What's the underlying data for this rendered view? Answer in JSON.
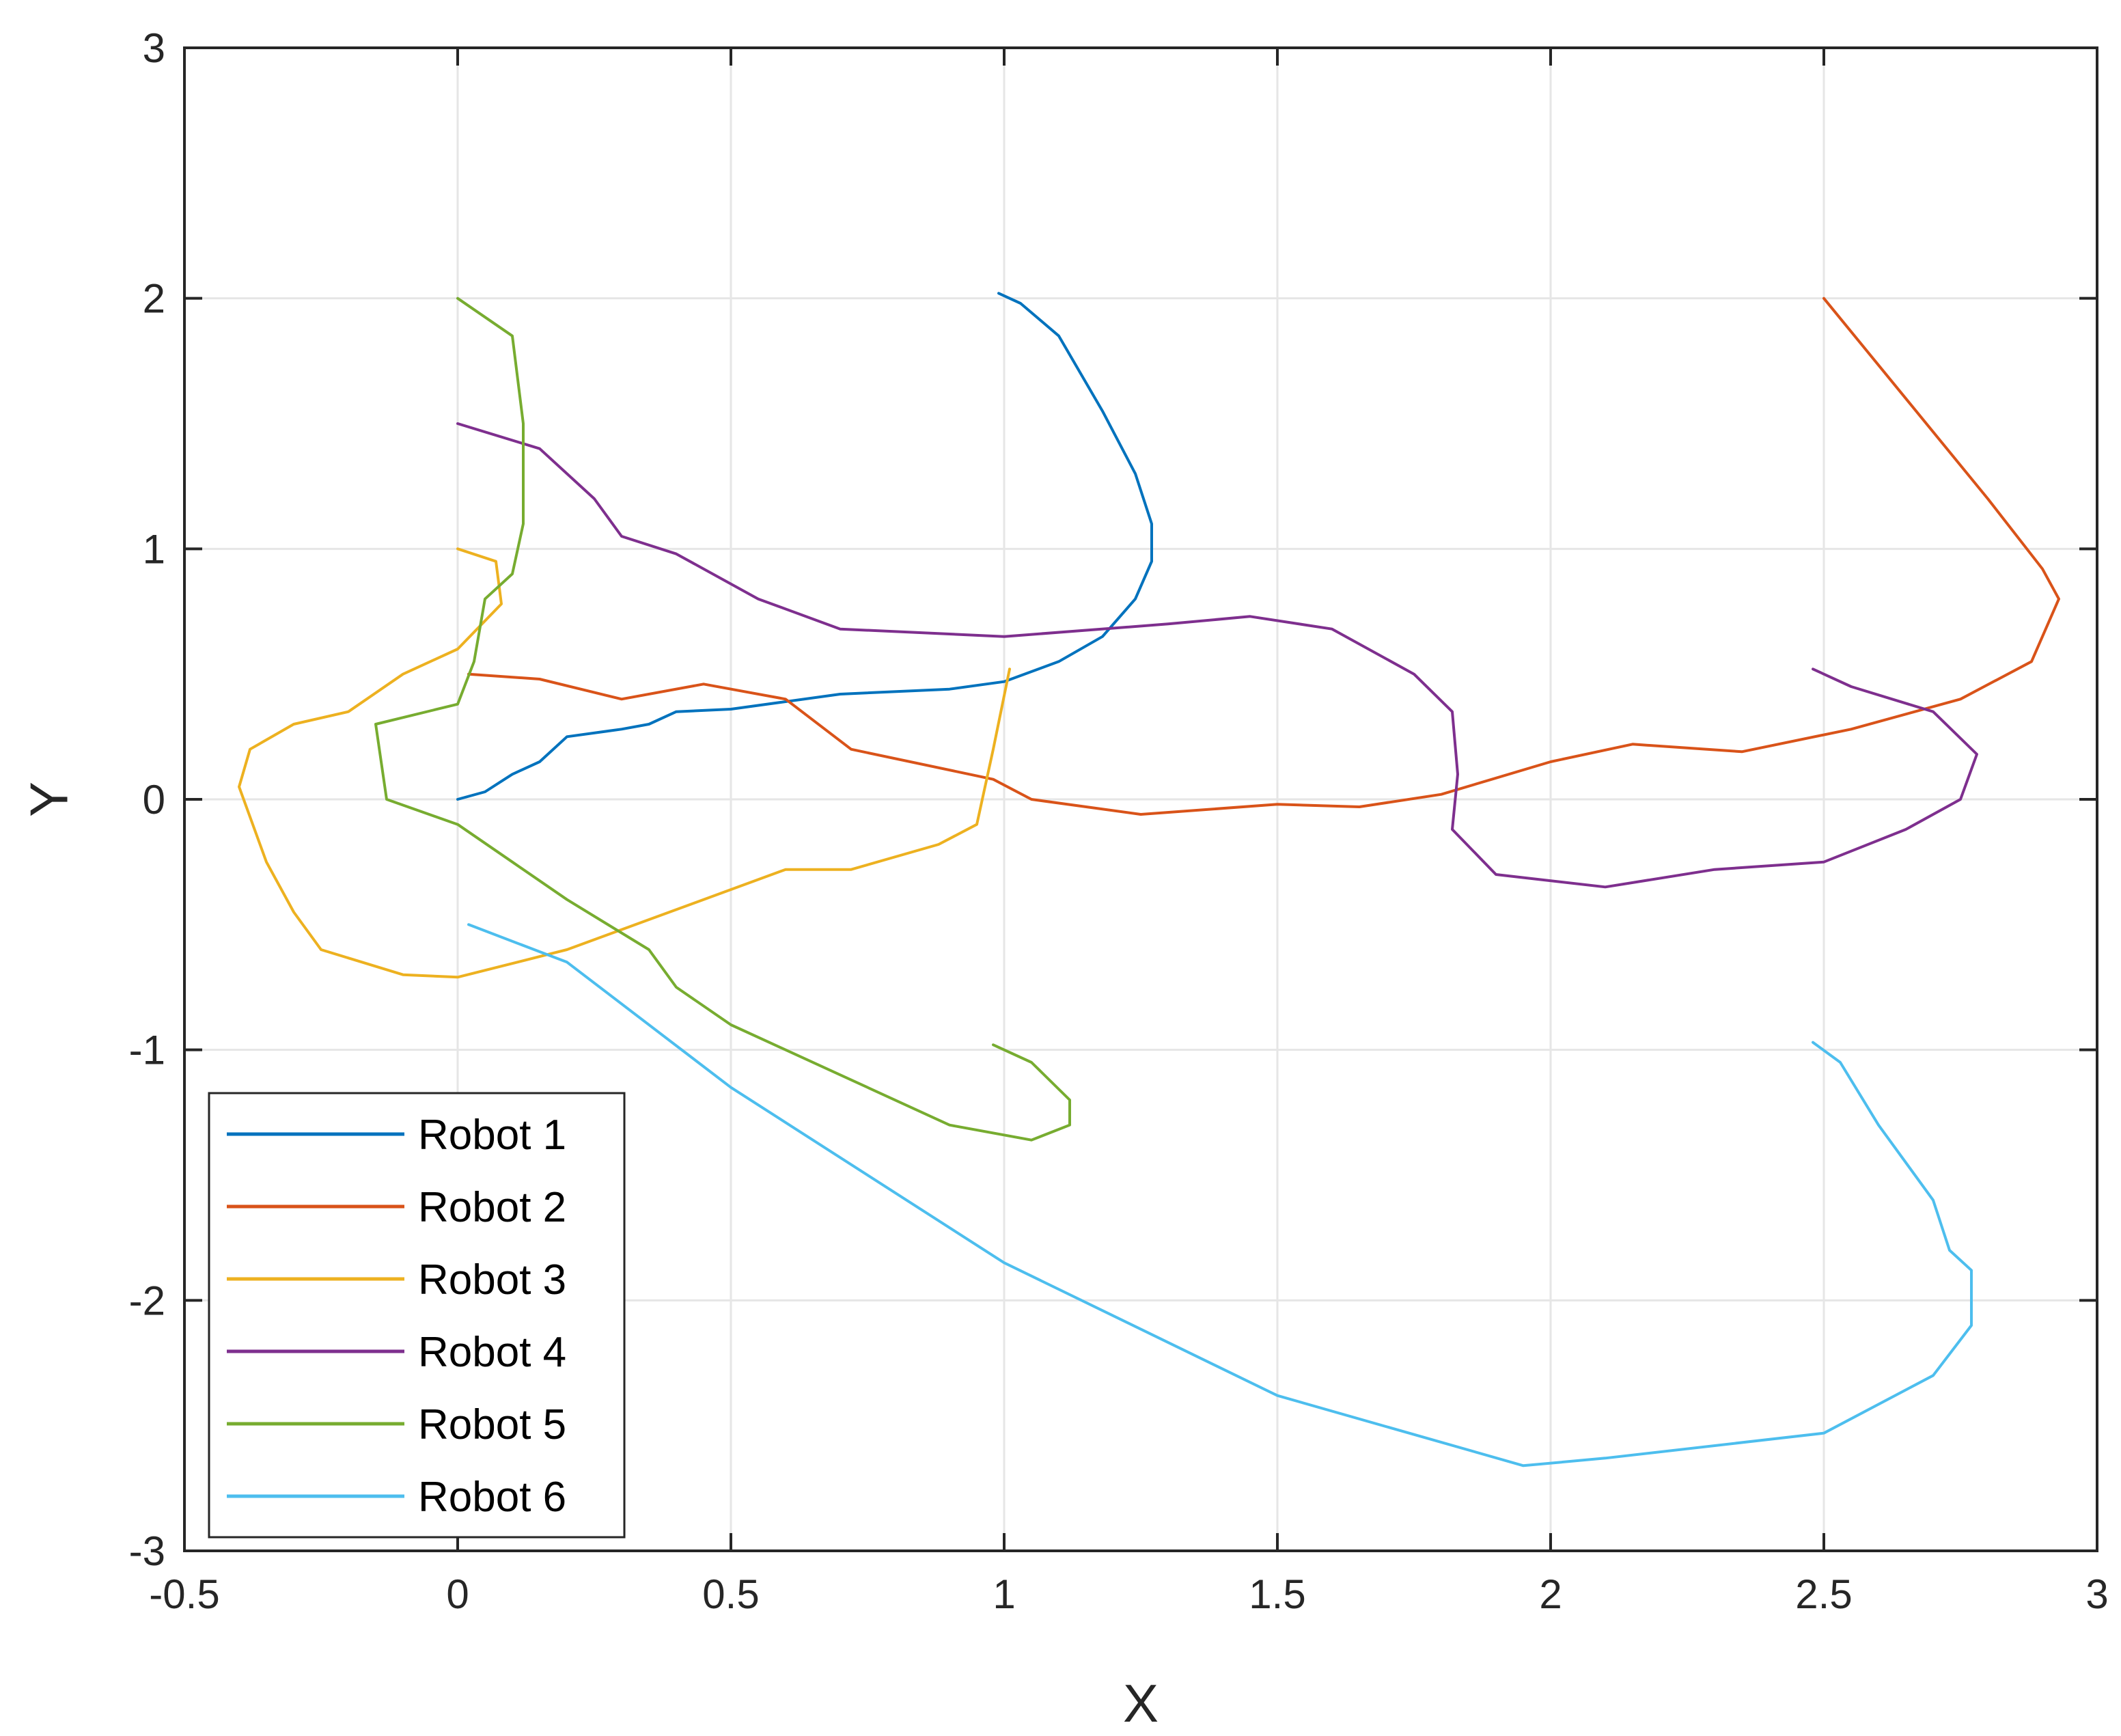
{
  "chart_data": {
    "type": "line",
    "title": "",
    "xlabel": "X",
    "ylabel": "Y",
    "xlim": [
      -0.5,
      3
    ],
    "ylim": [
      -3,
      3
    ],
    "xticks": [
      "-0.5",
      "0",
      "0.5",
      "1",
      "1.5",
      "2",
      "2.5",
      "3"
    ],
    "yticks": [
      "3",
      "2",
      "1",
      "0",
      "-1",
      "-2",
      "-3"
    ],
    "xtick_values": [
      -0.5,
      0,
      0.5,
      1,
      1.5,
      2,
      2.5,
      3
    ],
    "ytick_values": [
      3,
      2,
      1,
      0,
      -1,
      -2,
      -3
    ],
    "grid": true,
    "legend_position": "bottom-left",
    "series": [
      {
        "name": "Robot 1",
        "color": "#0072BD",
        "x": [
          0.0,
          0.05,
          0.1,
          0.15,
          0.2,
          0.3,
          0.35,
          0.4,
          0.5,
          0.7,
          0.9,
          1.0,
          1.1,
          1.18,
          1.24,
          1.27,
          1.27,
          1.24,
          1.18,
          1.1,
          1.03,
          0.99
        ],
        "y": [
          0.0,
          0.03,
          0.1,
          0.15,
          0.25,
          0.28,
          0.3,
          0.35,
          0.36,
          0.42,
          0.44,
          0.47,
          0.55,
          0.65,
          0.8,
          0.95,
          1.1,
          1.3,
          1.55,
          1.85,
          1.98,
          2.02
        ]
      },
      {
        "name": "Robot 2",
        "color": "#D95319",
        "x": [
          0.02,
          0.15,
          0.3,
          0.45,
          0.6,
          0.72,
          0.98,
          1.05,
          1.25,
          1.5,
          1.65,
          1.8,
          2.0,
          2.15,
          2.35,
          2.55,
          2.75,
          2.88,
          2.93,
          2.9,
          2.8,
          2.65,
          2.5
        ],
        "y": [
          0.5,
          0.48,
          0.4,
          0.46,
          0.4,
          0.2,
          0.08,
          0.0,
          -0.06,
          -0.02,
          -0.03,
          0.02,
          0.15,
          0.22,
          0.19,
          0.28,
          0.4,
          0.55,
          0.8,
          0.92,
          1.2,
          1.6,
          2.0
        ]
      },
      {
        "name": "Robot 3",
        "color": "#EDB120",
        "x": [
          1.01,
          0.98,
          0.95,
          0.88,
          0.72,
          0.6,
          0.2,
          0.0,
          -0.1,
          -0.25,
          -0.3,
          -0.35,
          -0.4,
          -0.38,
          -0.3,
          -0.2,
          -0.1,
          0.0,
          0.08,
          0.07,
          0.0
        ],
        "y": [
          0.52,
          0.2,
          -0.1,
          -0.18,
          -0.28,
          -0.28,
          -0.6,
          -0.71,
          -0.7,
          -0.6,
          -0.45,
          -0.25,
          0.05,
          0.2,
          0.3,
          0.35,
          0.5,
          0.6,
          0.78,
          0.95,
          1.0
        ]
      },
      {
        "name": "Robot 4",
        "color": "#7E2F8E",
        "x": [
          0.0,
          0.15,
          0.25,
          0.3,
          0.4,
          0.55,
          0.7,
          1.0,
          1.3,
          1.45,
          1.6,
          1.75,
          1.82,
          1.83,
          1.82,
          1.9,
          2.1,
          2.3,
          2.5,
          2.65,
          2.75,
          2.78,
          2.7,
          2.55,
          2.48
        ],
        "y": [
          1.5,
          1.4,
          1.2,
          1.05,
          0.98,
          0.8,
          0.68,
          0.65,
          0.7,
          0.73,
          0.68,
          0.5,
          0.35,
          0.1,
          -0.12,
          -0.3,
          -0.35,
          -0.28,
          -0.25,
          -0.12,
          0.0,
          0.18,
          0.35,
          0.45,
          0.52
        ]
      },
      {
        "name": "Robot 5",
        "color": "#77AC30",
        "x": [
          0.0,
          0.1,
          0.12,
          0.12,
          0.1,
          0.05,
          0.03,
          0.0,
          -0.15,
          -0.13,
          0.0,
          0.1,
          0.2,
          0.35,
          0.4,
          0.5,
          0.7,
          0.9,
          1.05,
          1.12,
          1.12,
          1.05,
          0.98
        ],
        "y": [
          2.0,
          1.85,
          1.5,
          1.1,
          0.9,
          0.8,
          0.55,
          0.38,
          0.3,
          0.0,
          -0.1,
          -0.25,
          -0.4,
          -0.6,
          -0.75,
          -0.9,
          -1.1,
          -1.3,
          -1.36,
          -1.3,
          -1.2,
          -1.05,
          -0.98
        ]
      },
      {
        "name": "Robot 6",
        "color": "#4DBEEE",
        "x": [
          0.02,
          0.2,
          0.5,
          1.0,
          1.5,
          1.95,
          2.1,
          2.5,
          2.7,
          2.77,
          2.77,
          2.73,
          2.7,
          2.6,
          2.53,
          2.48
        ],
        "y": [
          -0.5,
          -0.65,
          -1.15,
          -1.85,
          -2.38,
          -2.66,
          -2.63,
          -2.53,
          -2.3,
          -2.1,
          -1.88,
          -1.8,
          -1.6,
          -1.3,
          -1.05,
          -0.97
        ]
      }
    ]
  }
}
